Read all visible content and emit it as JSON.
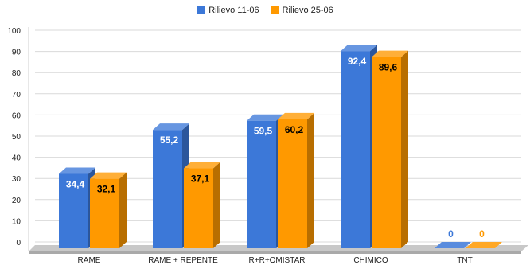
{
  "chart_data": {
    "type": "bar",
    "categories": [
      "RAME",
      "RAME + REPENTE",
      "R+R+OMISTAR",
      "CHIMICO",
      "TNT"
    ],
    "series": [
      {
        "name": "Rilievo 11-06",
        "values": [
          34.4,
          55.2,
          59.5,
          92.4,
          0
        ],
        "labels": [
          "34,4",
          "55,2",
          "59,5",
          "92,4",
          "0"
        ],
        "color": "#3c78d8"
      },
      {
        "name": "Rilievo 25-06",
        "values": [
          32.1,
          37.1,
          60.2,
          89.6,
          0
        ],
        "labels": [
          "32,1",
          "37,1",
          "60,2",
          "89,6",
          "0"
        ],
        "color": "#ff9900"
      }
    ],
    "ylim": [
      0,
      100
    ],
    "yticks": [
      "0",
      "10",
      "20",
      "30",
      "40",
      "50",
      "60",
      "70",
      "80",
      "90",
      "100"
    ],
    "grid": true,
    "legend_position": "top-center",
    "style": "3d-bar",
    "label_colors": {
      "inside": "#ffffff",
      "on_orange": "#000000"
    }
  }
}
